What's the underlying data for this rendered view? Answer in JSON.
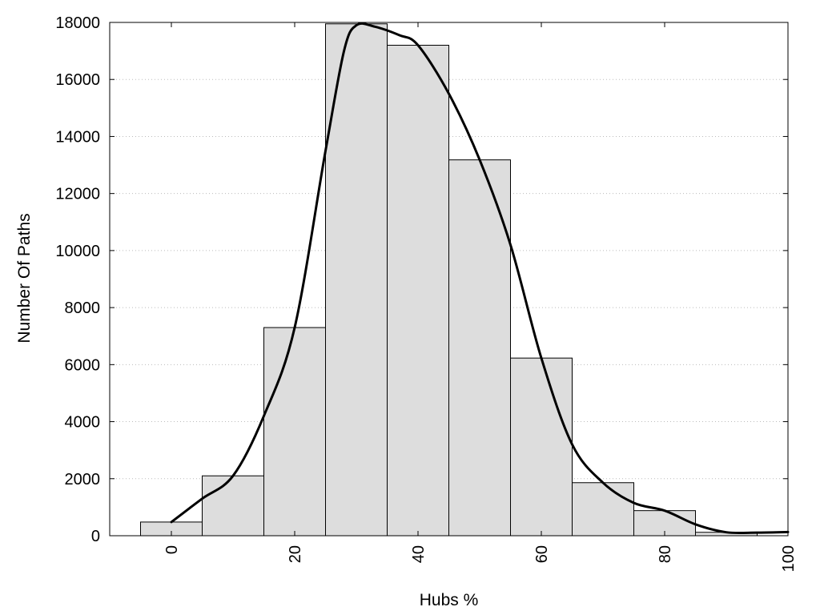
{
  "chart_data": {
    "type": "bar",
    "subtype": "histogram-with-density-curve",
    "xlabel": "Hubs %",
    "ylabel": "Number Of Paths",
    "xlim": [
      -10,
      100
    ],
    "ylim": [
      0,
      18000
    ],
    "bin_width": 10,
    "x_ticks": [
      0,
      20,
      40,
      60,
      80,
      100
    ],
    "y_ticks": [
      0,
      2000,
      4000,
      6000,
      8000,
      10000,
      12000,
      14000,
      16000,
      18000
    ],
    "grid": "horizontal-dotted",
    "bars": [
      {
        "center": 0,
        "value": 480
      },
      {
        "center": 10,
        "value": 2100
      },
      {
        "center": 20,
        "value": 7300
      },
      {
        "center": 30,
        "value": 17950
      },
      {
        "center": 40,
        "value": 17200
      },
      {
        "center": 50,
        "value": 13180
      },
      {
        "center": 60,
        "value": 6230
      },
      {
        "center": 70,
        "value": 1860
      },
      {
        "center": 80,
        "value": 880
      },
      {
        "center": 90,
        "value": 120
      }
    ],
    "curve": [
      [
        0,
        480
      ],
      [
        5,
        1300
      ],
      [
        10,
        2100
      ],
      [
        15,
        4200
      ],
      [
        20,
        7300
      ],
      [
        25,
        13500
      ],
      [
        28,
        17000
      ],
      [
        30,
        17900
      ],
      [
        33,
        17850
      ],
      [
        37,
        17550
      ],
      [
        40,
        17200
      ],
      [
        45,
        15500
      ],
      [
        50,
        13180
      ],
      [
        55,
        10200
      ],
      [
        60,
        6230
      ],
      [
        65,
        3200
      ],
      [
        70,
        1860
      ],
      [
        75,
        1150
      ],
      [
        80,
        880
      ],
      [
        85,
        400
      ],
      [
        90,
        120
      ],
      [
        95,
        110
      ],
      [
        100,
        130
      ]
    ],
    "colors": {
      "bar_fill": "#dddddd",
      "bar_stroke": "#000000",
      "curve": "#000000"
    }
  }
}
